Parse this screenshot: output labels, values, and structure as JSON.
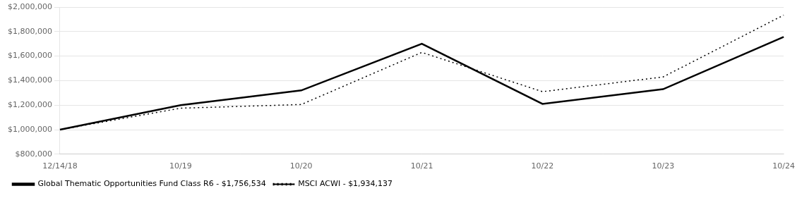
{
  "chart_data": {
    "type": "line",
    "categories": [
      "12/14/18",
      "10/19",
      "10/20",
      "10/21",
      "10/22",
      "10/23",
      "10/24"
    ],
    "series": [
      {
        "name": "Global Thematic Opportunities Fund Class R6 - $1,756,534",
        "color": "#000000",
        "line_style": "solid",
        "values": [
          1000000,
          1200000,
          1320000,
          1700000,
          1210000,
          1330000,
          1756534
        ]
      },
      {
        "name": "MSCI ACWI - $1,934,137",
        "color": "#000000",
        "line_style": "dotted",
        "values": [
          1000000,
          1175000,
          1205000,
          1630000,
          1310000,
          1430000,
          1934137
        ]
      }
    ],
    "ylim": [
      800000,
      2000000
    ],
    "yticks": [
      {
        "value": 800000,
        "label": "$800,000"
      },
      {
        "value": 1000000,
        "label": "$1,000,000"
      },
      {
        "value": 1200000,
        "label": "$1,200,000"
      },
      {
        "value": 1400000,
        "label": "$1,400,000"
      },
      {
        "value": 1600000,
        "label": "$1,600,000"
      },
      {
        "value": 1800000,
        "label": "$1,800,000"
      },
      {
        "value": 2000000,
        "label": "$2,000,000"
      }
    ],
    "grid": "y",
    "legend": "bottom"
  }
}
